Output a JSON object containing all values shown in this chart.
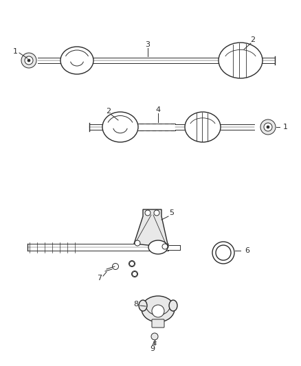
{
  "bg_color": "#ffffff",
  "line_color": "#2a2a2a",
  "fig_width": 4.38,
  "fig_height": 5.33,
  "dpi": 100,
  "gray_fill": "#e8e8e8",
  "med_gray": "#aaaaaa",
  "dark_gray": "#666666"
}
